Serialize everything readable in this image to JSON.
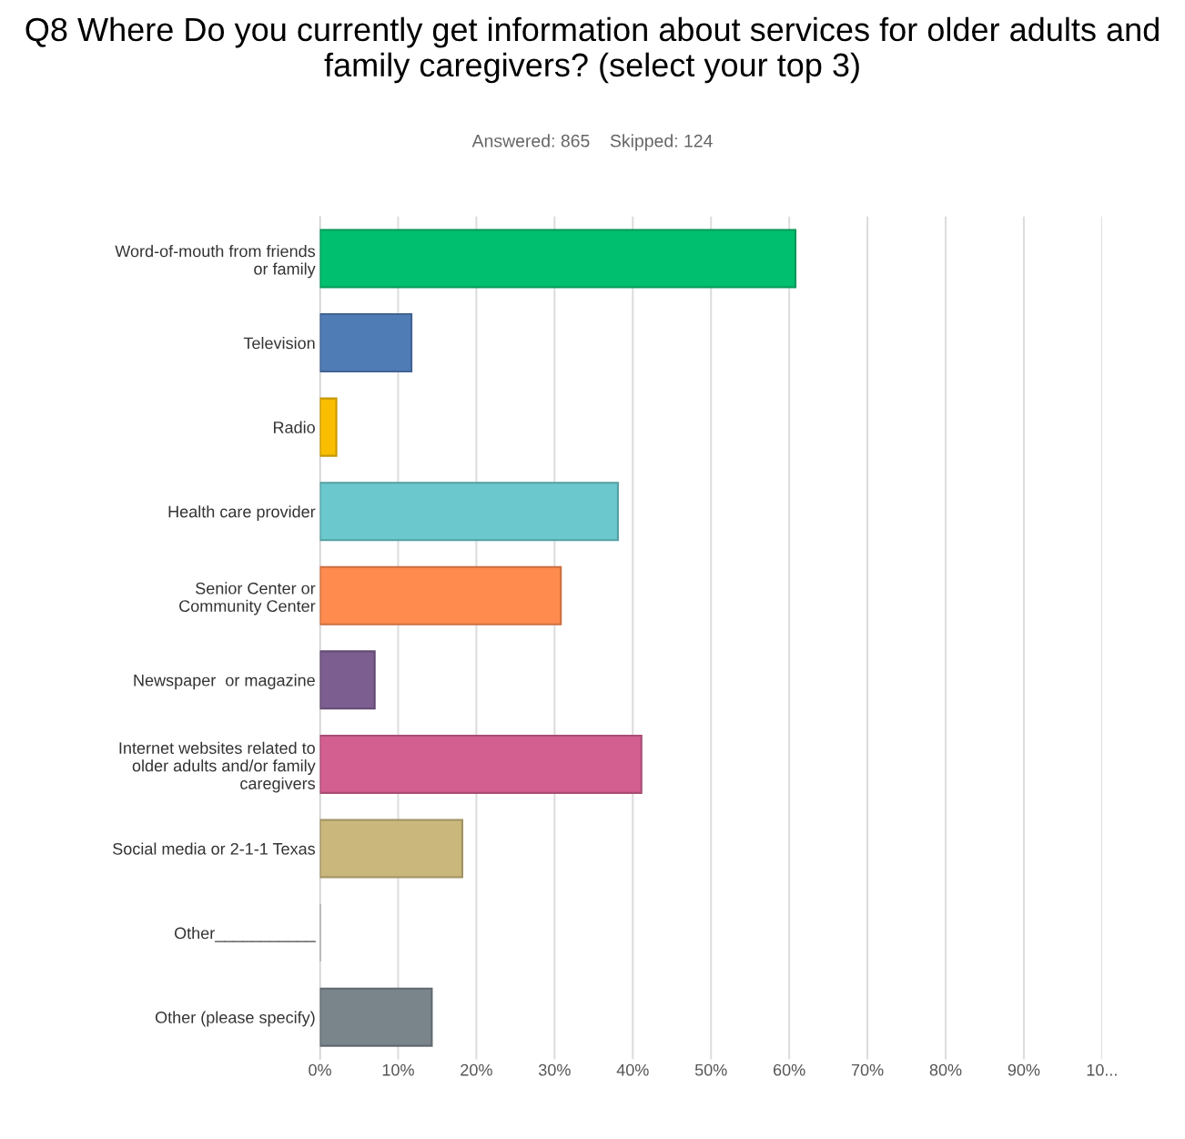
{
  "chart_data": {
    "type": "bar",
    "orientation": "horizontal",
    "title": "Q8 Where Do you currently get information about services for older adults and family caregivers? (select your top 3)",
    "subtitle": "Answered: 865    Skipped: 124",
    "categories": [
      "Word-of-mouth from friends\nor family",
      "Television",
      "Radio",
      "Health care provider",
      "Senior Center or\nCommunity Center",
      "Newspaper  or magazine",
      "Internet websites related to\nolder adults and/or family\ncaregivers",
      "Social media or 2-1-1 Texas",
      "Other___________",
      "Other (please specify)"
    ],
    "values": [
      60.8,
      11.7,
      2.1,
      38.1,
      30.8,
      7.0,
      41.1,
      18.2,
      0,
      14.3
    ],
    "colors": [
      "#00bf6f",
      "#507cb6",
      "#f9be00",
      "#6bc8cd",
      "#ff8b4f",
      "#7d5e90",
      "#d25f90",
      "#c9b77c",
      "#a0a0a0",
      "#7a848b"
    ],
    "xlim": [
      0,
      100
    ],
    "xticks": [
      {
        "value": 0,
        "label": "0%"
      },
      {
        "value": 10,
        "label": "10%"
      },
      {
        "value": 20,
        "label": "20%"
      },
      {
        "value": 30,
        "label": "30%"
      },
      {
        "value": 40,
        "label": "40%"
      },
      {
        "value": 50,
        "label": "50%"
      },
      {
        "value": 60,
        "label": "60%"
      },
      {
        "value": 70,
        "label": "70%"
      },
      {
        "value": 80,
        "label": "80%"
      },
      {
        "value": 90,
        "label": "90%"
      },
      {
        "value": 100,
        "label": "10..."
      }
    ],
    "grid": "x",
    "legend": false
  }
}
